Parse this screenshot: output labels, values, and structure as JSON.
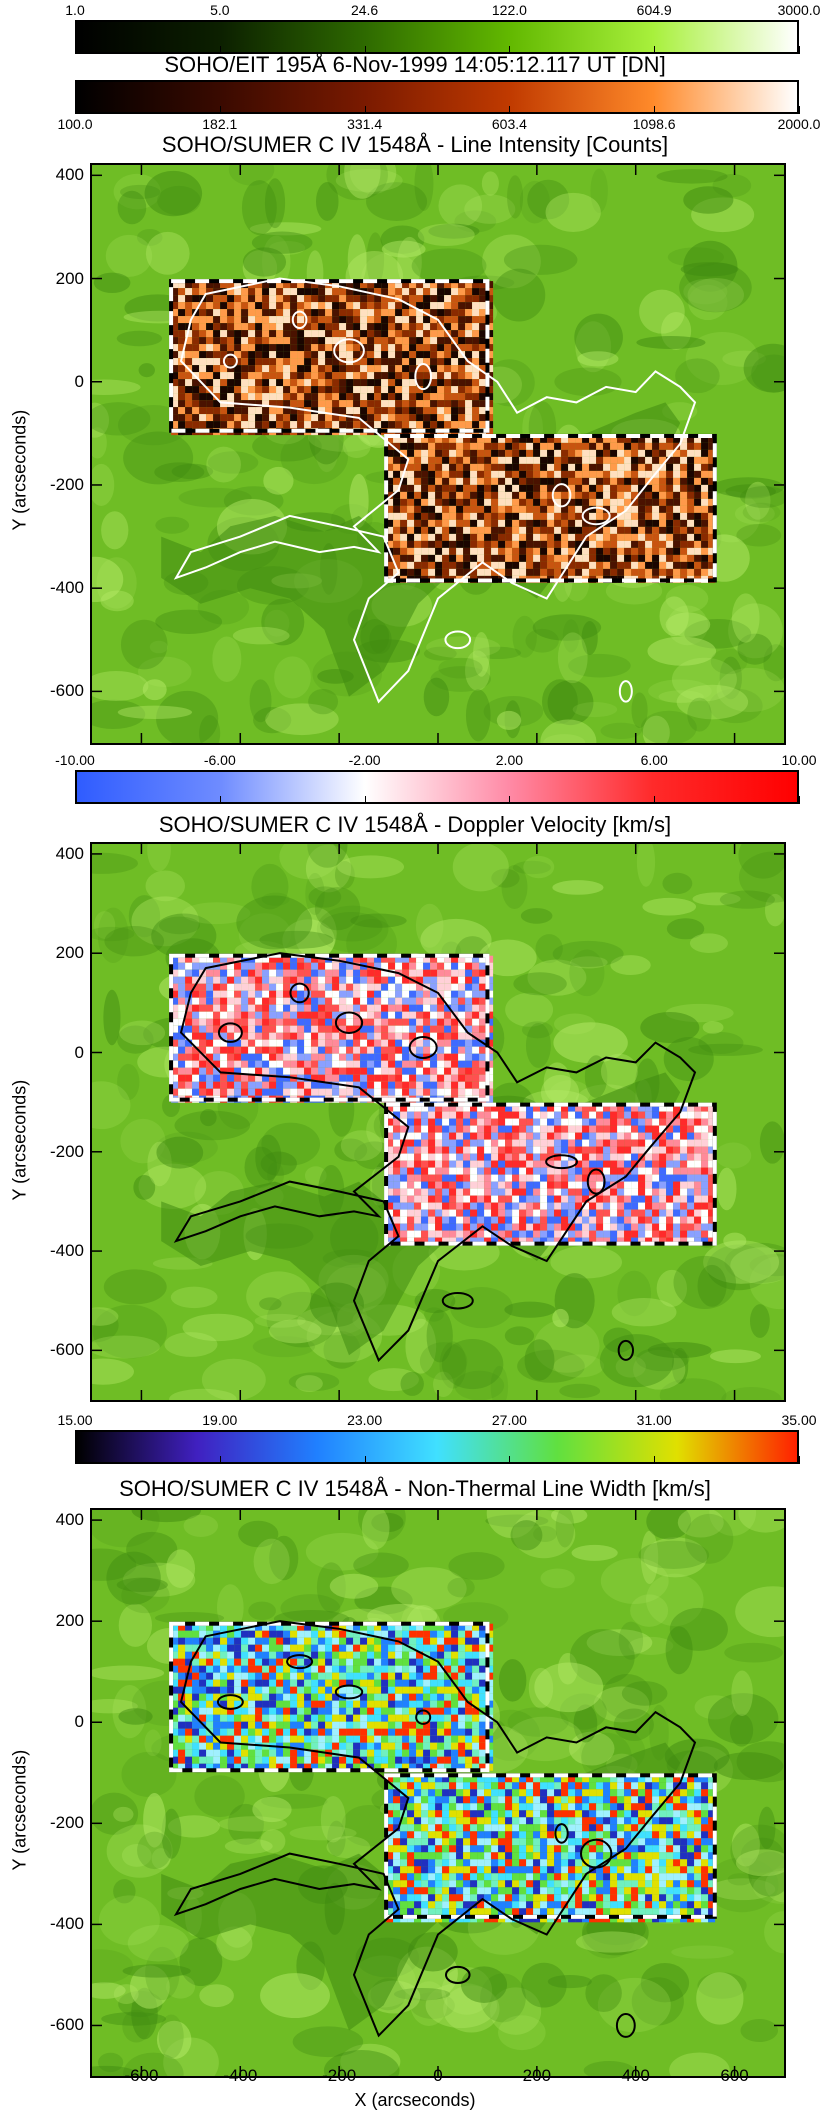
{
  "colorbars": [
    {
      "id": "eit",
      "ticks": [
        "1.0",
        "5.0",
        "24.6",
        "122.0",
        "604.9",
        "3000.0"
      ],
      "colors": [
        "#000000",
        "#0c2000",
        "#2e6a00",
        "#62b800",
        "#a8f03c",
        "#ffffff"
      ]
    },
    {
      "id": "intensity",
      "ticks": [
        "100.0",
        "182.1",
        "331.4",
        "603.4",
        "1098.6",
        "2000.0"
      ],
      "colors": [
        "#000000",
        "#3a0a00",
        "#7a1a00",
        "#c03a00",
        "#ff8a2a",
        "#ffffff"
      ]
    },
    {
      "id": "doppler",
      "ticks": [
        "-10.00",
        "-6.00",
        "-2.00",
        "2.00",
        "6.00",
        "10.00"
      ],
      "colors": [
        "#2f5cff",
        "#6f8cff",
        "#ffffff",
        "#ff8aa6",
        "#ff2a2a",
        "#ff0000"
      ]
    },
    {
      "id": "nonthermal",
      "ticks": [
        "15.00",
        "19.00",
        "23.00",
        "27.00",
        "31.00",
        "35.00"
      ],
      "colors": [
        "#000000",
        "#4020c0",
        "#2080ff",
        "#40e0ff",
        "#60e040",
        "#e0e000",
        "#ff2000"
      ]
    }
  ],
  "titles": {
    "eit": "SOHO/EIT 195Å  6-Nov-1999 14:05:12.117 UT [DN]",
    "intensity": "SOHO/SUMER C IV 1548Å - Line Intensity [Counts]",
    "doppler": "SOHO/SUMER C IV 1548Å - Doppler Velocity [km/s]",
    "nonthermal": "SOHO/SUMER C IV 1548Å - Non-Thermal Line Width [km/s]"
  },
  "axes": {
    "ylabel": "Y (arcseconds)",
    "xlabel": "X (arcseconds)",
    "yticks": [
      "400",
      "200",
      "0",
      "-200",
      "-400",
      "-600"
    ],
    "xticks": [
      "-600",
      "-400",
      "-200",
      "0",
      "200",
      "400",
      "600"
    ]
  },
  "colors": {
    "background_green": "#6fbd25",
    "dark_green": "#3f8a10",
    "light_green": "#b8ec6a"
  },
  "panels": [
    {
      "id": "intensity",
      "contour_color": "#ffffff",
      "patch_palette": [
        "#1a0500",
        "#4a1200",
        "#8a2a00",
        "#c85410",
        "#ff9a4a",
        "#ffe0c0"
      ]
    },
    {
      "id": "doppler",
      "contour_color": "#000000",
      "patch_palette": [
        "#ff2a2a",
        "#ff5050",
        "#ff8a9a",
        "#ffd0d8",
        "#ffffff",
        "#8aa0ff",
        "#3f6aff"
      ]
    },
    {
      "id": "nonthermal",
      "contour_color": "#000000",
      "patch_palette": [
        "#40e0ff",
        "#70f0c0",
        "#60e040",
        "#2080ff",
        "#2030c0",
        "#e0e000",
        "#ff3000",
        "#a0f0ff"
      ]
    }
  ]
}
